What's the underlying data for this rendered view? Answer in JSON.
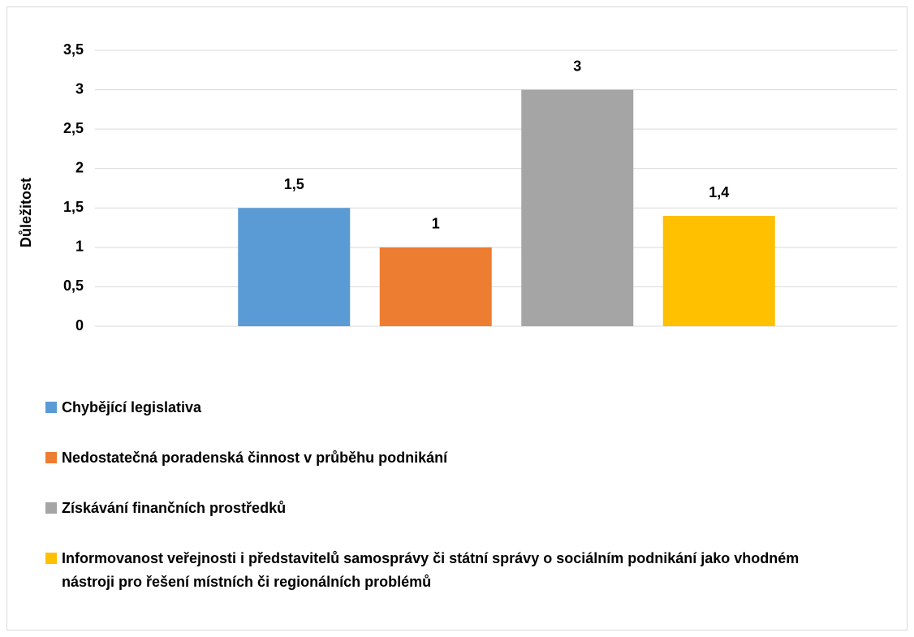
{
  "chart_data": {
    "type": "bar",
    "y_label": "Důležitost",
    "categories": [
      null
    ],
    "series": [
      {
        "name": "Chybějící legislativa",
        "color": "#5b9bd5",
        "values": [
          1.5
        ],
        "value_labels": [
          "1,5"
        ]
      },
      {
        "name": "Nedostatečná poradenská činnost v průběhu podnikání",
        "color": "#ed7d31",
        "values": [
          1
        ],
        "value_labels": [
          "1"
        ]
      },
      {
        "name": "Získávání finančních prostředků",
        "color": "#a5a5a5",
        "values": [
          3
        ],
        "value_labels": [
          "3"
        ]
      },
      {
        "name": "Informovanost veřejnosti i představitelů samosprávy či státní správy o sociálním podnikání jako vhodném nástroji pro řešení místních či regionálních problémů",
        "color": "#ffc000",
        "values": [
          1.4
        ],
        "value_labels": [
          "1,4"
        ]
      }
    ],
    "ylim": [
      0,
      3.5
    ],
    "yticks": [
      0,
      {
        "value": 0.5,
        "label": "0,5"
      },
      1,
      {
        "value": 1.5,
        "label": "1,5"
      },
      2,
      {
        "value": 2.5,
        "label": "2,5"
      },
      3,
      {
        "value": 3.5,
        "label": "3,5"
      }
    ],
    "grid": true,
    "legend": "bottom"
  }
}
